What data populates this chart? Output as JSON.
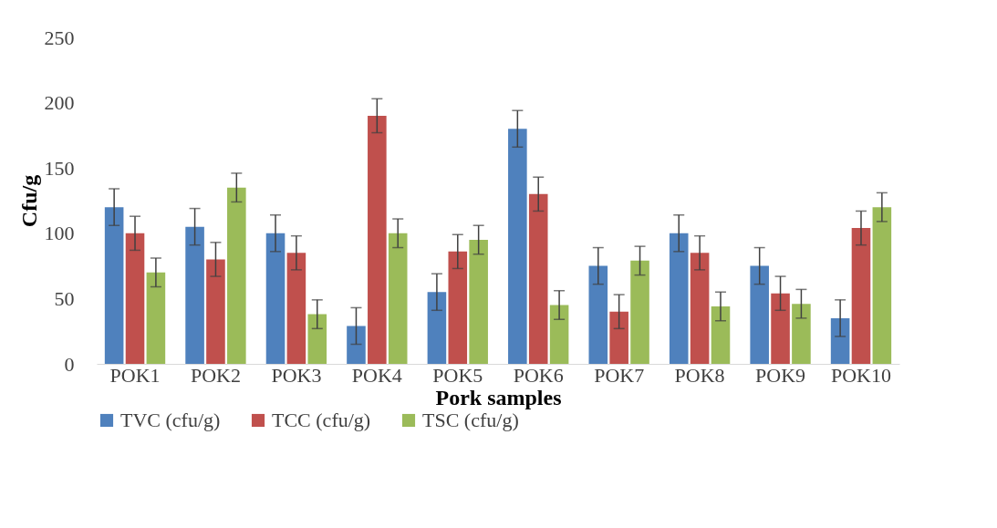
{
  "chart_data": {
    "type": "bar",
    "xlabel": "Pork samples",
    "ylabel": "Cfu/g",
    "categories": [
      "POK1",
      "POK2",
      "POK3",
      "POK4",
      "POK5",
      "POK6",
      "POK7",
      "POK8",
      "POK9",
      "POK10"
    ],
    "series": [
      {
        "name": "TVC (cfu/g)",
        "color": "#4f81bd",
        "values": [
          120,
          105,
          100,
          29,
          55,
          180,
          75,
          100,
          75,
          35
        ],
        "errors": [
          14,
          14,
          14,
          14,
          14,
          14,
          14,
          14,
          14,
          14
        ]
      },
      {
        "name": "TCC (cfu/g)",
        "color": "#c0504d",
        "values": [
          100,
          80,
          85,
          190,
          86,
          130,
          40,
          85,
          54,
          104
        ],
        "errors": [
          13,
          13,
          13,
          13,
          13,
          13,
          13,
          13,
          13,
          13
        ]
      },
      {
        "name": "TSC (cfu/g)",
        "color": "#9bbb59",
        "values": [
          70,
          135,
          38,
          100,
          95,
          45,
          79,
          44,
          46,
          120
        ],
        "errors": [
          11,
          11,
          11,
          11,
          11,
          11,
          11,
          11,
          11,
          11
        ]
      }
    ],
    "ylim": [
      0,
      250
    ],
    "yticks": [
      0,
      50,
      100,
      150,
      200,
      250
    ],
    "grid": false,
    "legend": "bottom"
  }
}
